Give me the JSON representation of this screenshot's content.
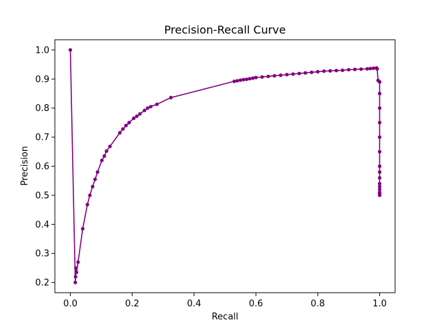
{
  "chart_data": {
    "type": "line",
    "title": "Precision-Recall Curve",
    "xlabel": "Recall",
    "ylabel": "Precision",
    "xlim": [
      -0.05,
      1.05
    ],
    "ylim": [
      0.165,
      1.035
    ],
    "xticks": [
      0.0,
      0.2,
      0.4,
      0.6,
      0.8,
      1.0
    ],
    "xtick_labels": [
      "0.0",
      "0.2",
      "0.4",
      "0.6",
      "0.8",
      "1.0"
    ],
    "yticks": [
      0.2,
      0.3,
      0.4,
      0.5,
      0.6,
      0.7,
      0.8,
      0.9,
      1.0
    ],
    "ytick_labels": [
      "0.2",
      "0.3",
      "0.4",
      "0.5",
      "0.6",
      "0.7",
      "0.8",
      "0.9",
      "1.0"
    ],
    "grid": false,
    "colors": {
      "series": "#800080",
      "axes": "#000000",
      "background": "#ffffff"
    },
    "series": [
      {
        "marker": "circle",
        "x": [
          0.0,
          0.016,
          0.017,
          0.018,
          0.02,
          0.025,
          0.04,
          0.055,
          0.063,
          0.072,
          0.08,
          0.088,
          0.102,
          0.11,
          0.117,
          0.128,
          0.16,
          0.17,
          0.18,
          0.19,
          0.205,
          0.215,
          0.225,
          0.24,
          0.25,
          0.26,
          0.28,
          0.325,
          0.53,
          0.54,
          0.55,
          0.56,
          0.57,
          0.58,
          0.59,
          0.6,
          0.62,
          0.64,
          0.66,
          0.68,
          0.7,
          0.72,
          0.74,
          0.76,
          0.78,
          0.8,
          0.82,
          0.84,
          0.86,
          0.88,
          0.9,
          0.92,
          0.94,
          0.96,
          0.97,
          0.98,
          0.99,
          0.992,
          0.995,
          1.0,
          1.0,
          1.0,
          1.0,
          1.0,
          1.0,
          1.0,
          1.0,
          1.0,
          1.0,
          1.0,
          1.0,
          1.0,
          1.0,
          1.0
        ],
        "y": [
          1.0,
          0.2,
          0.22,
          0.25,
          0.235,
          0.27,
          0.385,
          0.468,
          0.5,
          0.53,
          0.555,
          0.58,
          0.62,
          0.635,
          0.652,
          0.668,
          0.715,
          0.728,
          0.74,
          0.75,
          0.765,
          0.772,
          0.78,
          0.792,
          0.8,
          0.805,
          0.813,
          0.836,
          0.892,
          0.894,
          0.896,
          0.898,
          0.899,
          0.901,
          0.903,
          0.905,
          0.907,
          0.909,
          0.911,
          0.913,
          0.915,
          0.917,
          0.919,
          0.921,
          0.923,
          0.925,
          0.927,
          0.928,
          0.929,
          0.93,
          0.932,
          0.933,
          0.934,
          0.935,
          0.936,
          0.937,
          0.938,
          0.935,
          0.895,
          0.89,
          0.85,
          0.8,
          0.75,
          0.7,
          0.65,
          0.6,
          0.58,
          0.56,
          0.54,
          0.53,
          0.52,
          0.51,
          0.505,
          0.5
        ]
      }
    ]
  }
}
